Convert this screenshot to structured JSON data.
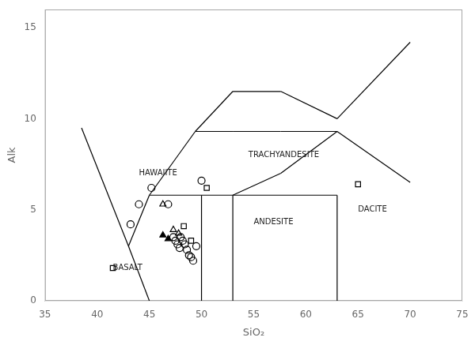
{
  "chart_data": {
    "type": "scatter",
    "xlabel": "SiO₂",
    "ylabel": "Alk",
    "xlim": [
      35,
      75
    ],
    "ylim": [
      0,
      16
    ],
    "xticks": [
      35,
      40,
      45,
      50,
      55,
      60,
      65,
      70,
      75
    ],
    "yticks": [
      0,
      5,
      10,
      15
    ],
    "grid": false,
    "boundaries": {
      "color": "black",
      "lines": [
        {
          "x": [
            38.5,
            43.0
          ],
          "y": [
            9.5,
            3.0
          ]
        },
        {
          "x": [
            43.0,
            45.0
          ],
          "y": [
            3.0,
            0.0
          ]
        },
        {
          "x": [
            43.0,
            45.0
          ],
          "y": [
            3.0,
            5.8
          ]
        },
        {
          "x": [
            45.0,
            49.4
          ],
          "y": [
            5.8,
            9.3
          ]
        },
        {
          "x": [
            49.4,
            53.0
          ],
          "y": [
            9.3,
            11.5
          ]
        },
        {
          "x": [
            53.0,
            57.6
          ],
          "y": [
            11.5,
            11.5
          ]
        },
        {
          "x": [
            57.6,
            63.0
          ],
          "y": [
            11.5,
            10.0
          ]
        },
        {
          "x": [
            63.0,
            70.0
          ],
          "y": [
            10.0,
            14.2
          ]
        },
        {
          "x": [
            49.4,
            53.0
          ],
          "y": [
            9.3,
            9.3
          ]
        },
        {
          "x": [
            53.0,
            57.6
          ],
          "y": [
            9.3,
            9.3
          ]
        },
        {
          "x": [
            57.6,
            63.0
          ],
          "y": [
            9.3,
            9.3
          ]
        },
        {
          "x": [
            53.0,
            57.6
          ],
          "y": [
            5.8,
            7.0
          ]
        },
        {
          "x": [
            57.6,
            63.0
          ],
          "y": [
            7.0,
            9.3
          ]
        },
        {
          "x": [
            45.0,
            53.0
          ],
          "y": [
            5.8,
            5.8
          ]
        },
        {
          "x": [
            53.0,
            63.0
          ],
          "y": [
            5.8,
            5.8
          ]
        },
        {
          "x": [
            50.0,
            50.0
          ],
          "y": [
            0.0,
            5.8
          ]
        },
        {
          "x": [
            53.0,
            53.0
          ],
          "y": [
            0.0,
            5.8
          ]
        },
        {
          "x": [
            63.0,
            63.0
          ],
          "y": [
            0.0,
            5.8
          ]
        },
        {
          "x": [
            63.0,
            70.0
          ],
          "y": [
            9.3,
            6.5
          ]
        }
      ]
    },
    "annotations": [
      {
        "text": "BASALT",
        "x": 41.5,
        "y": 1.8
      },
      {
        "text": "HAWAIITE",
        "x": 44.0,
        "y": 7.0
      },
      {
        "text": "TRACHYANDESITE",
        "x": 54.5,
        "y": 8.0
      },
      {
        "text": "ANDESITE",
        "x": 55.0,
        "y": 4.3
      },
      {
        "text": "DACITE",
        "x": 65.0,
        "y": 5.0
      }
    ],
    "series": [
      {
        "marker": "circle-open",
        "color": "black",
        "x": [
          43.2,
          44.0,
          45.2,
          46.8,
          47.3,
          47.5,
          47.7,
          47.9,
          48.0,
          48.2,
          48.4,
          48.6,
          48.8,
          49.0,
          49.2,
          49.5,
          50.0
        ],
        "values": [
          4.2,
          5.3,
          6.2,
          5.3,
          3.5,
          3.3,
          3.1,
          2.9,
          3.5,
          3.3,
          3.1,
          2.8,
          2.5,
          2.4,
          2.2,
          3.0,
          6.6
        ]
      },
      {
        "marker": "triangle-open",
        "color": "black",
        "x": [
          46.3,
          47.3,
          47.8
        ],
        "values": [
          5.3,
          3.9,
          3.7
        ]
      },
      {
        "marker": "triangle-filled",
        "color": "black",
        "x": [
          46.3,
          46.8
        ],
        "values": [
          3.6,
          3.4
        ]
      },
      {
        "marker": "square-open",
        "color": "black",
        "x": [
          41.5,
          48.3,
          49.0,
          50.5,
          65.0
        ],
        "values": [
          1.8,
          4.1,
          3.3,
          6.2,
          6.4
        ]
      }
    ]
  }
}
